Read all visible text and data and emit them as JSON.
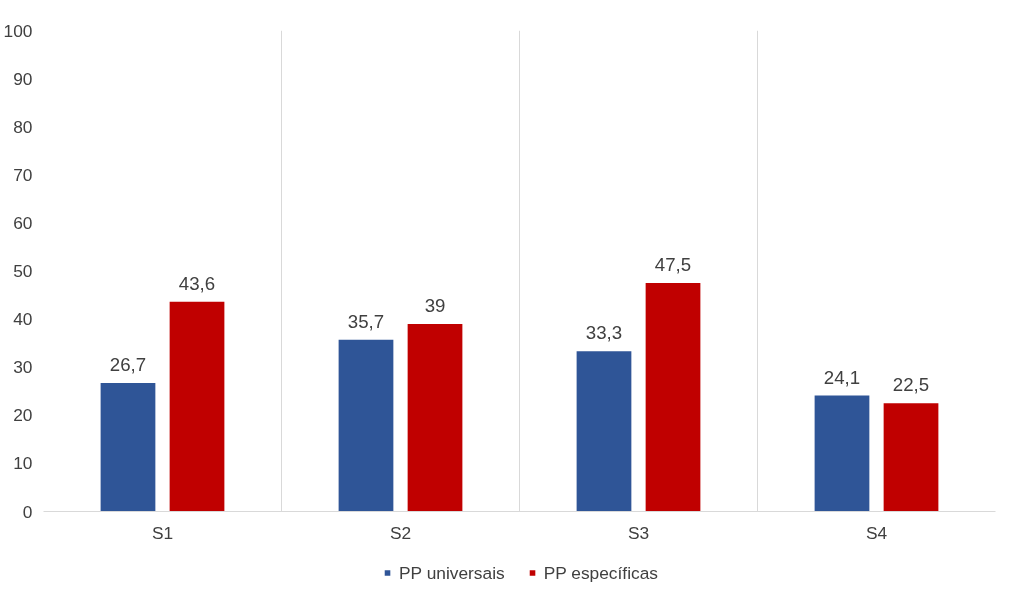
{
  "chart_data": {
    "type": "bar",
    "categories": [
      "S1",
      "S2",
      "S3",
      "S4"
    ],
    "series": [
      {
        "name": "PP universais",
        "color": "#2f5597",
        "values": [
          26.7,
          35.7,
          33.3,
          24.1
        ],
        "value_labels": [
          "26,7",
          "35,7",
          "33,3",
          "24,1"
        ]
      },
      {
        "name": "PP específicas",
        "color": "#c00000",
        "values": [
          43.6,
          39,
          47.5,
          22.5
        ],
        "value_labels": [
          "43,6",
          "39",
          "47,5",
          "22,5"
        ]
      }
    ],
    "ylim": [
      0,
      100
    ],
    "yticks": [
      0,
      10,
      20,
      30,
      40,
      50,
      60,
      70,
      80,
      90,
      100
    ],
    "grid": "x",
    "legend": "bottom"
  }
}
